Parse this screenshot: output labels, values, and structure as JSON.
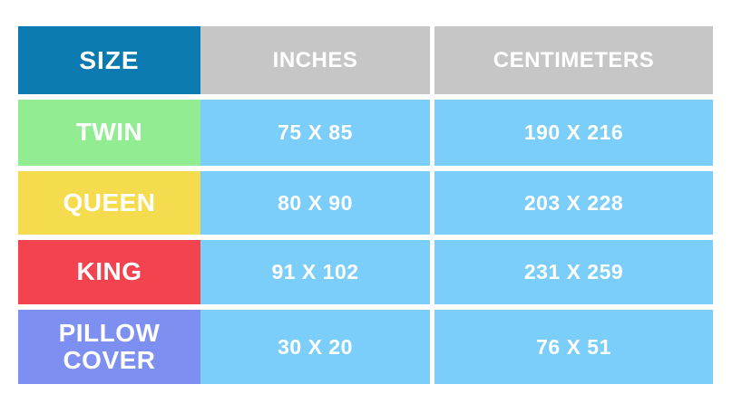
{
  "colors": {
    "header_size_bg": "#0b7ab0",
    "header_units_bg": "#c6c6c6",
    "value_cell_bg": "#7acef9",
    "row_twin_bg": "#92ec92",
    "row_queen_bg": "#f5dc4e",
    "row_king_bg": "#f2434f",
    "row_pillow_bg": "#7d90f1",
    "text": "#ffffff",
    "page_bg": "#ffffff"
  },
  "table": {
    "header": {
      "size": "SIZE",
      "inches": "INCHES",
      "centimeters": "CENTIMETERS"
    },
    "rows": [
      {
        "size": "TWIN",
        "inches": "75 X 85",
        "centimeters": "190 X 216"
      },
      {
        "size": "QUEEN",
        "inches": "80 X 90",
        "centimeters": "203 X 228"
      },
      {
        "size": "KING",
        "inches": "91 X 102",
        "centimeters": "231 X 259"
      },
      {
        "size": "PILLOW COVER",
        "inches": "30 X 20",
        "centimeters": "76 X 51"
      }
    ]
  },
  "chart_data": {
    "type": "table",
    "title": "",
    "columns": [
      "SIZE",
      "INCHES",
      "CENTIMETERS"
    ],
    "rows": [
      [
        "TWIN",
        "75 X 85",
        "190 X 216"
      ],
      [
        "QUEEN",
        "80 X 90",
        "203 X 228"
      ],
      [
        "KING",
        "91 X 102",
        "231 X 259"
      ],
      [
        "PILLOW COVER",
        "30 X 20",
        "76 X 51"
      ]
    ],
    "notes": "Bed sheet size conversion table; INCHES and CENTIMETERS give width X length per size."
  }
}
